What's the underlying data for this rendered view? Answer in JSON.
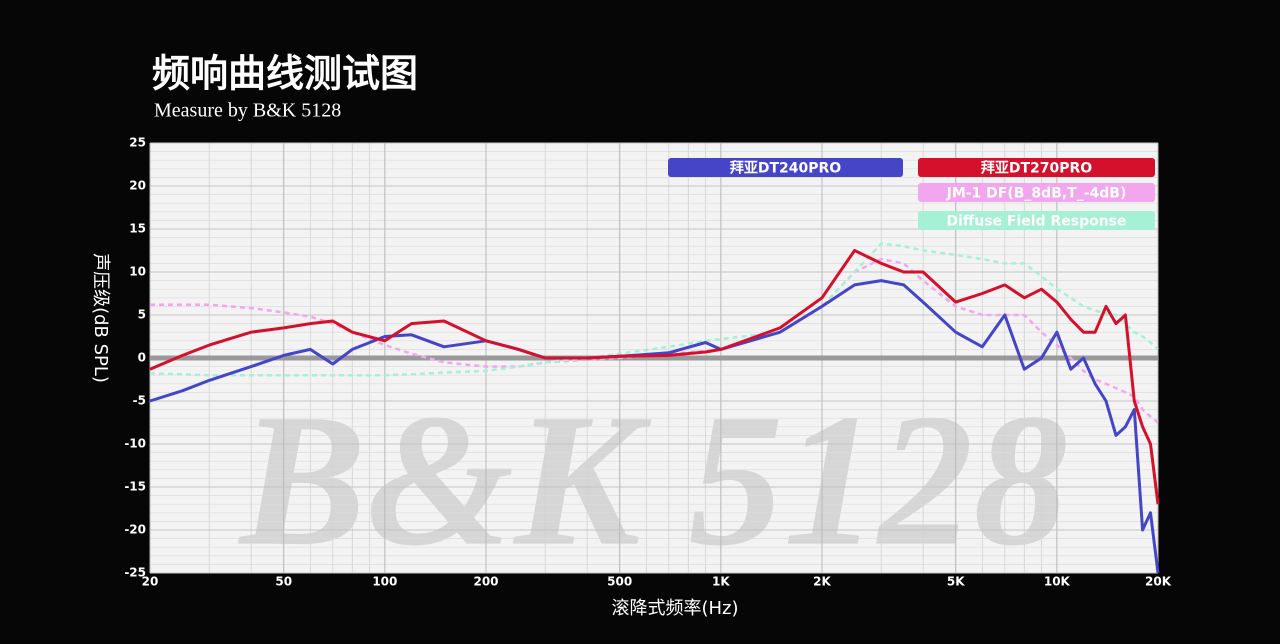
{
  "chart_data": {
    "type": "line",
    "title": "频响曲线测试图",
    "subtitle": "Measure by B&K 5128",
    "watermark": "B&K 5128",
    "x_label": "滚降式频率(Hz)",
    "y_label": "声压级(dB SPL)",
    "xscale": "log",
    "grid": true,
    "legend": "upper right",
    "xlim": [
      20,
      20000
    ],
    "ylim": [
      -25,
      25
    ],
    "xticks": [
      20,
      50,
      100,
      200,
      500,
      {
        "value": 1000,
        "label": "1K"
      },
      {
        "value": 2000,
        "label": "2K"
      },
      {
        "value": 5000,
        "label": "5K"
      },
      {
        "value": 10000,
        "label": "10K"
      },
      {
        "value": 20000,
        "label": "20K"
      }
    ],
    "yticks": [
      -25,
      -20,
      -15,
      -10,
      -5,
      0,
      5,
      10,
      15,
      20,
      25
    ],
    "x": [
      20,
      25,
      30,
      40,
      50,
      60,
      70,
      80,
      100,
      120,
      150,
      200,
      250,
      300,
      400,
      500,
      700,
      900,
      1000,
      1500,
      2000,
      2500,
      3000,
      3500,
      4000,
      5000,
      6000,
      7000,
      8000,
      9000,
      10000,
      11000,
      12000,
      13000,
      14000,
      15000,
      16000,
      17000,
      18000,
      19000,
      20000
    ],
    "series": [
      {
        "name": "拜亚DT240PRO",
        "color": "#4545c8",
        "dashed": false,
        "values": [
          -5,
          -3.8,
          -2.6,
          -1,
          0.3,
          1,
          -0.7,
          1,
          2.5,
          2.7,
          1.3,
          2,
          1,
          0,
          0,
          0.2,
          0.6,
          1.8,
          1,
          3,
          6,
          8.5,
          9,
          8.5,
          6.5,
          3,
          1.3,
          5,
          -1.3,
          0,
          3,
          -1.3,
          0,
          -3,
          -5,
          -9,
          -8,
          -6,
          -20,
          -18,
          -25
        ]
      },
      {
        "name": "拜亚DT270PRO",
        "color": "#d5102c",
        "dashed": false,
        "values": [
          -1.3,
          0.3,
          1.5,
          3,
          3.5,
          4,
          4.3,
          3,
          2,
          4,
          4.3,
          2,
          1,
          0,
          0,
          0.2,
          0.3,
          0.7,
          1,
          3.5,
          7,
          12.5,
          11,
          10,
          10,
          6.5,
          7.5,
          8.5,
          7,
          8,
          6.5,
          4.5,
          3,
          3,
          6,
          4,
          5,
          -5,
          -8,
          -10,
          -17
        ]
      },
      {
        "name": "JM-1 DF(B_8dB,T_-4dB)",
        "color": "#f2a6ee",
        "dashed": true,
        "values": [
          6.2,
          6.2,
          6.2,
          5.8,
          5.3,
          4.8,
          4,
          3,
          1.5,
          0.5,
          -0.5,
          -1,
          -1,
          -0.5,
          -0.2,
          0,
          0.5,
          0.8,
          1,
          3,
          6,
          10,
          11.5,
          11,
          9,
          6,
          5,
          5,
          5,
          3,
          1.5,
          0,
          -1.5,
          -2.5,
          -3,
          -3.5,
          -4,
          -4.5,
          -6,
          -6.8,
          -7.5
        ]
      },
      {
        "name": "Diffuse Field Response",
        "color": "#a6f0d6",
        "dashed": true,
        "values": [
          -1.8,
          -1.9,
          -2,
          -2,
          -2,
          -2,
          -2,
          -2,
          -2,
          -1.9,
          -1.7,
          -1.5,
          -1,
          -0.5,
          0,
          0.5,
          1.3,
          2,
          2.2,
          3,
          6,
          10,
          13.3,
          13,
          12.5,
          12,
          11.5,
          11,
          11,
          9.5,
          8,
          7,
          6,
          5.5,
          5.2,
          5,
          4,
          3,
          2.5,
          1.8,
          1
        ]
      }
    ]
  }
}
